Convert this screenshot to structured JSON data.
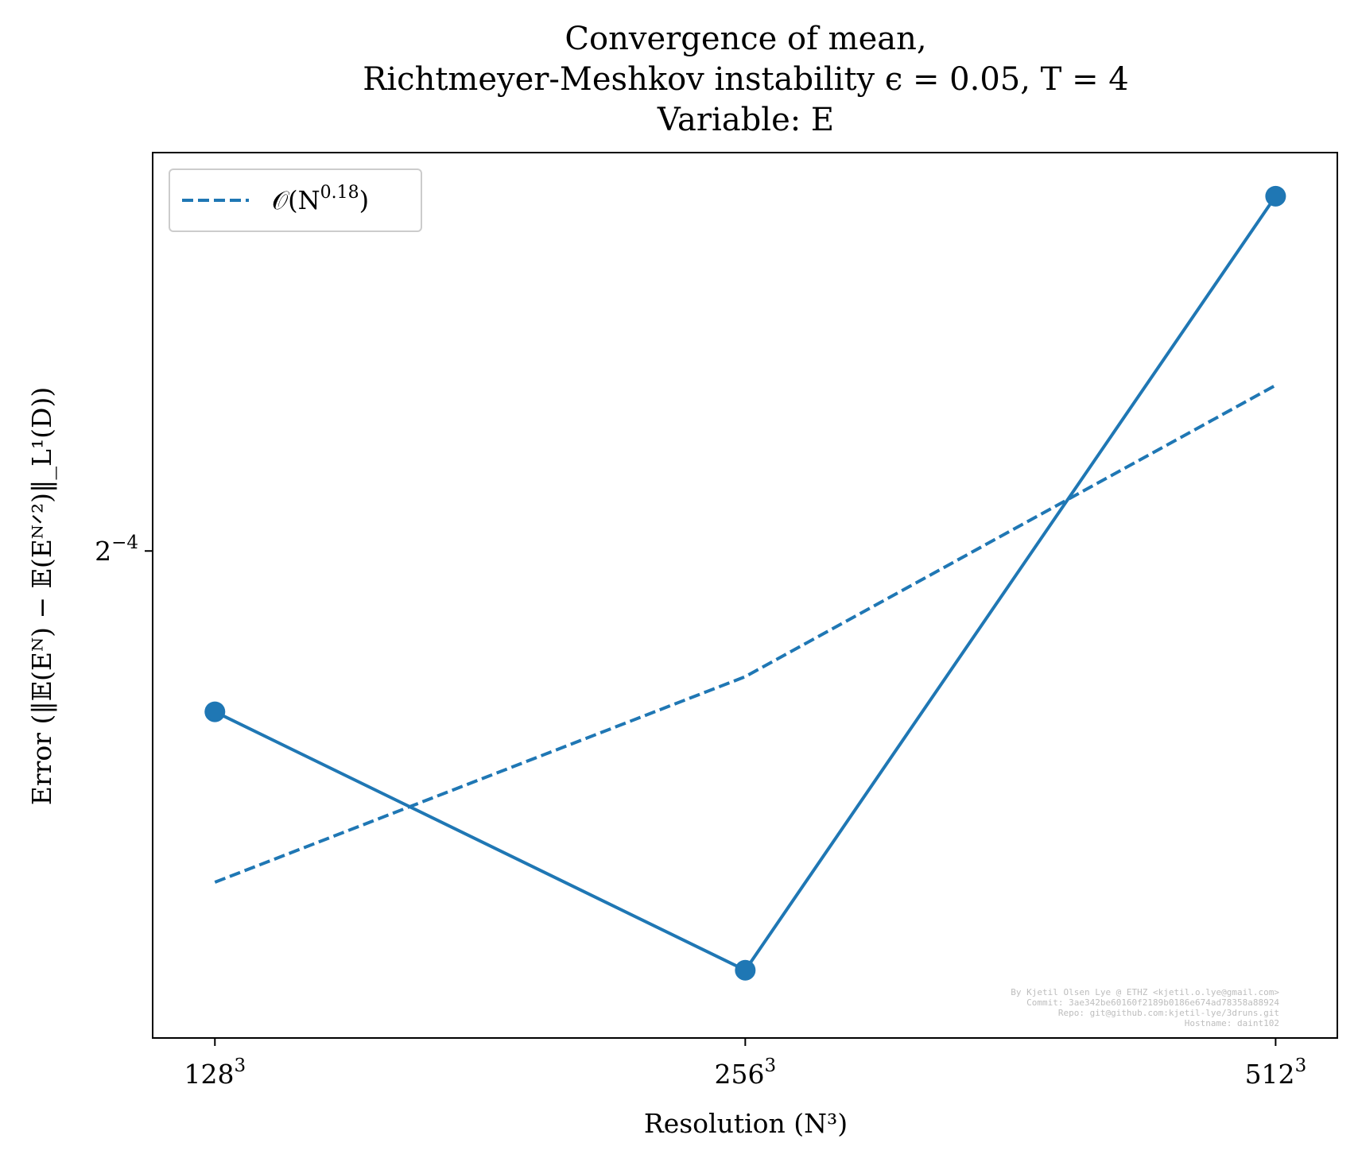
{
  "title_lines": [
    "Convergence of mean,",
    "Richtmeyer-Meshkov instability ϵ = 0.05, T = 4",
    "Variable: E"
  ],
  "chart_data": {
    "type": "line",
    "xscale": "log2",
    "yscale": "log2",
    "xlabel": "Resolution (N³)",
    "ylabel": "Error (‖𝔼(Eᴺ) − 𝔼(Eᴺᐟ²)‖_L¹(D))",
    "x_ticks": [
      {
        "value": 128,
        "base": "128",
        "exp": "3"
      },
      {
        "value": 256,
        "base": "256",
        "exp": "3"
      },
      {
        "value": 512,
        "base": "512",
        "exp": "3"
      }
    ],
    "y_ticks": [
      {
        "value": 0.0625,
        "base": "2",
        "exp": "−4"
      }
    ],
    "xlim": [
      118,
      555
    ],
    "ylim": [
      0.04555,
      0.08096
    ],
    "series": [
      {
        "name": "",
        "style": "solid",
        "markers": true,
        "color": "#1f77b4",
        "x": [
          128,
          256,
          512
        ],
        "y": [
          0.0563,
          0.0476,
          0.0787
        ]
      },
      {
        "name": "𝒪(N^0.18)",
        "style": "dashed",
        "markers": false,
        "color": "#1f77b4",
        "x": [
          128,
          256,
          512
        ],
        "y": [
          0.0504,
          0.0576,
          0.0696
        ]
      }
    ],
    "legend": {
      "placement": "top-left",
      "label_base": "𝒪(N",
      "label_exp": "0.18",
      "label_close": ")"
    },
    "grid": false
  },
  "credits": [
    "By Kjetil Olsen Lye @ ETHZ <kjetil.o.lye@gmail.com>",
    "Commit: 3ae342be60160f2189b0186e674ad78358a88924",
    "Repo: git@github.com:kjetil-lye/3druns.git",
    "Hostname: daint102"
  ]
}
